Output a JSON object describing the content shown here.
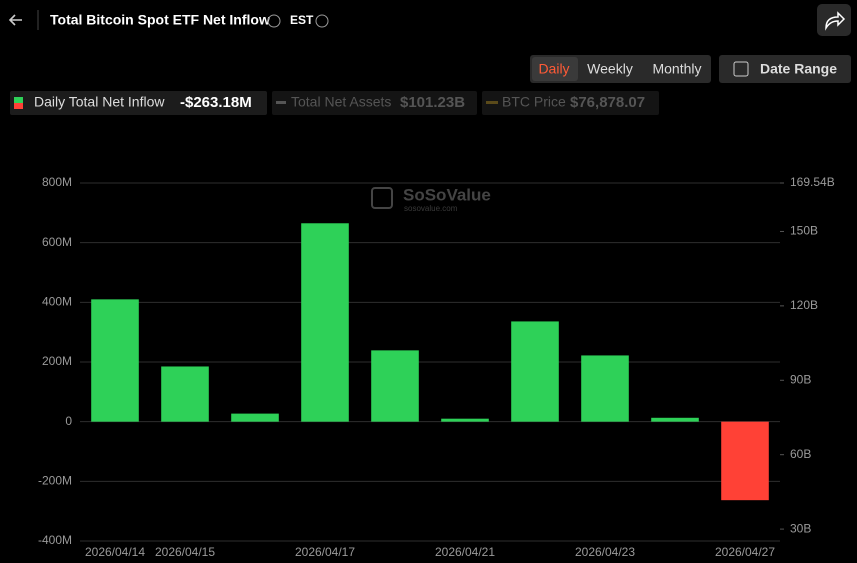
{
  "header": {
    "title": "Total Bitcoin Spot ETF Net Inflow",
    "timezone": "EST"
  },
  "tabs": [
    "Daily",
    "Weekly",
    "Monthly"
  ],
  "date_range": "Date Range",
  "legend": [
    {
      "name": "Daily Total Net Inflow",
      "value": "-$263.18M"
    },
    {
      "name": "Total Net Assets",
      "value": "$101.23B"
    },
    {
      "name": "BTC Price",
      "value": "$76,878.07"
    }
  ],
  "watermark": {
    "brand": "SoSoValue",
    "url": "sosovalue.com"
  },
  "chart_data": {
    "type": "bar",
    "categories": [
      "2026/04/14",
      "2026/04/15",
      null,
      "2026/04/17",
      null,
      "2026/04/21",
      null,
      "2026/04/23",
      null,
      "2026/04/27"
    ],
    "values": [
      410,
      185,
      27,
      665,
      239,
      10,
      336,
      222,
      13,
      -263.18
    ],
    "color": "#2ed158",
    "negative_color": "#ff4136",
    "ylim": [
      -400,
      800
    ],
    "yticks": [
      {
        "value": -400,
        "label": "-400M"
      },
      {
        "value": -200,
        "label": "-200M"
      },
      0,
      {
        "value": 200,
        "label": "200M"
      },
      {
        "value": 400,
        "label": "400M"
      },
      {
        "value": 600,
        "label": "600M"
      },
      {
        "value": 800,
        "label": "800M"
      }
    ],
    "y2lim": [
      25.2,
      169.54
    ],
    "y2ticks": [
      {
        "value": 30,
        "label": "30B"
      },
      {
        "value": 60,
        "label": "60B"
      },
      {
        "value": 90,
        "label": "90B"
      },
      {
        "value": 120,
        "label": "120B"
      },
      {
        "value": 150,
        "label": "150B"
      },
      {
        "value": 169.54,
        "label": "169.54B"
      }
    ],
    "grid": true
  }
}
